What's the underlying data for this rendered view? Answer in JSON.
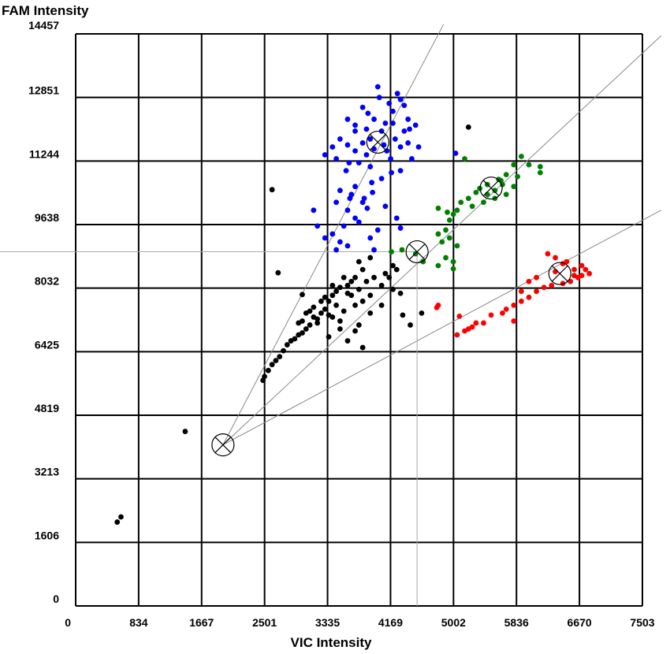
{
  "chart_data": {
    "type": "scatter",
    "xlabel": "VIC Intensity",
    "ylabel": "FAM Intensity",
    "xlim": [
      0,
      7503
    ],
    "ylim": [
      0,
      14457
    ],
    "x_ticks": [
      "0",
      "834",
      "1667",
      "2501",
      "3335",
      "4169",
      "5002",
      "5836",
      "6670",
      "7503"
    ],
    "y_ticks": [
      "0",
      "1606",
      "3213",
      "4819",
      "6425",
      "8032",
      "9638",
      "11244",
      "12851",
      "14457"
    ],
    "grid": true,
    "colors": {
      "blue": "#0000ff",
      "green": "#008000",
      "red": "#ff0000",
      "black": "#000000",
      "grid": "#000000",
      "fit_line": "#888888"
    },
    "centroids": [
      {
        "x": 1950,
        "y": 4070
      },
      {
        "x": 4000,
        "y": 11720
      },
      {
        "x": 5500,
        "y": 10560
      },
      {
        "x": 6410,
        "y": 8400
      },
      {
        "x": 4520,
        "y": 8950
      }
    ],
    "fit_lines": [
      {
        "x1": 1950,
        "y1": 4070,
        "x2": 4870,
        "y2": 14700
      },
      {
        "x1": 1950,
        "y1": 4070,
        "x2": 7750,
        "y2": 14410
      },
      {
        "x1": 1950,
        "y1": 4070,
        "x2": 7750,
        "y2": 10000
      }
    ],
    "crosshair": {
      "x": 4520,
      "y": 8950
    },
    "series": [
      {
        "color": "blue",
        "points": [
          [
            4000,
            13120
          ],
          [
            4150,
            12700
          ],
          [
            4200,
            12500
          ],
          [
            3870,
            12450
          ],
          [
            4300,
            12800
          ],
          [
            4400,
            12300
          ],
          [
            3600,
            12300
          ],
          [
            3700,
            12000
          ],
          [
            3500,
            11800
          ],
          [
            3400,
            11600
          ],
          [
            3300,
            11400
          ],
          [
            3650,
            10400
          ],
          [
            3800,
            10200
          ],
          [
            3600,
            10000
          ],
          [
            3700,
            9800
          ],
          [
            3550,
            9600
          ],
          [
            3400,
            9400
          ],
          [
            3300,
            9300
          ],
          [
            3500,
            9200
          ],
          [
            3600,
            9100
          ],
          [
            3450,
            9000
          ],
          [
            3950,
            9000
          ],
          [
            3150,
            10000
          ],
          [
            3200,
            9600
          ],
          [
            4100,
            10100
          ],
          [
            4250,
            9800
          ],
          [
            4300,
            9550
          ],
          [
            3920,
            10700
          ],
          [
            4050,
            10800
          ],
          [
            4180,
            10950
          ],
          [
            4300,
            11000
          ],
          [
            4450,
            11300
          ],
          [
            4540,
            11600
          ],
          [
            4400,
            11700
          ],
          [
            4350,
            12000
          ],
          [
            3850,
            11400
          ],
          [
            3750,
            11200
          ],
          [
            3900,
            11100
          ],
          [
            4100,
            12200
          ],
          [
            3950,
            12300
          ],
          [
            3800,
            12600
          ],
          [
            4020,
            12850
          ],
          [
            4260,
            12950
          ],
          [
            4350,
            12650
          ],
          [
            4420,
            12050
          ],
          [
            4500,
            12150
          ],
          [
            3700,
            11500
          ],
          [
            3580,
            11000
          ],
          [
            3500,
            10500
          ],
          [
            3450,
            10200
          ],
          [
            3700,
            10600
          ],
          [
            3820,
            10300
          ],
          [
            4000,
            9500
          ],
          [
            3900,
            9300
          ],
          [
            3750,
            9700
          ],
          [
            4120,
            11500
          ],
          [
            4230,
            11800
          ],
          [
            4050,
            12000
          ],
          [
            3900,
            11800
          ],
          [
            3800,
            11700
          ],
          [
            3950,
            11550
          ],
          [
            4080,
            11650
          ],
          [
            4170,
            11300
          ],
          [
            3850,
            12050
          ],
          [
            3700,
            12150
          ],
          [
            3600,
            11650
          ],
          [
            3450,
            11300
          ],
          [
            3620,
            11200
          ],
          [
            4200,
            12200
          ],
          [
            4300,
            11600
          ],
          [
            3930,
            10450
          ],
          [
            3860,
            10050
          ],
          [
            3630,
            10300
          ],
          [
            5030,
            11440
          ]
        ]
      },
      {
        "color": "green",
        "points": [
          [
            5900,
            11360
          ],
          [
            5800,
            11150
          ],
          [
            6000,
            11150
          ],
          [
            6150,
            10950
          ],
          [
            6150,
            11100
          ],
          [
            5700,
            10900
          ],
          [
            5600,
            10780
          ],
          [
            5450,
            10650
          ],
          [
            5300,
            10450
          ],
          [
            5200,
            10300
          ],
          [
            5100,
            10200
          ],
          [
            5050,
            10000
          ],
          [
            5000,
            9900
          ],
          [
            4950,
            9750
          ],
          [
            4900,
            9500
          ],
          [
            4800,
            9400
          ],
          [
            4850,
            9200
          ],
          [
            4950,
            9300
          ],
          [
            5050,
            9100
          ],
          [
            5000,
            8700
          ],
          [
            4900,
            8800
          ],
          [
            4800,
            8600
          ],
          [
            5700,
            10400
          ],
          [
            5550,
            10500
          ],
          [
            5400,
            10200
          ],
          [
            5800,
            10600
          ],
          [
            5350,
            10550
          ],
          [
            5450,
            10400
          ],
          [
            5150,
            11300
          ],
          [
            5650,
            10650
          ],
          [
            5550,
            10300
          ],
          [
            5250,
            10100
          ],
          [
            4800,
            10050
          ],
          [
            4920,
            9950
          ],
          [
            5850,
            10850
          ],
          [
            4180,
            8950
          ],
          [
            4320,
            9000
          ],
          [
            4500,
            8900
          ],
          [
            4600,
            8700
          ],
          [
            5000,
            8520
          ],
          [
            5630,
            10750
          ]
        ]
      },
      {
        "color": "red",
        "points": [
          [
            6500,
            8700
          ],
          [
            6350,
            8800
          ],
          [
            6250,
            8900
          ],
          [
            6600,
            8500
          ],
          [
            6700,
            8600
          ],
          [
            6800,
            8400
          ],
          [
            6650,
            8300
          ],
          [
            6550,
            8200
          ],
          [
            6450,
            8150
          ],
          [
            6300,
            8100
          ],
          [
            6200,
            8050
          ],
          [
            6100,
            7950
          ],
          [
            6000,
            7800
          ],
          [
            5900,
            7700
          ],
          [
            5800,
            7600
          ],
          [
            5700,
            7500
          ],
          [
            5650,
            7400
          ],
          [
            5800,
            7200
          ],
          [
            5500,
            7350
          ],
          [
            5400,
            7150
          ],
          [
            5300,
            7150
          ],
          [
            5250,
            7050
          ],
          [
            5200,
            7000
          ],
          [
            5150,
            6950
          ],
          [
            5050,
            6850
          ],
          [
            4800,
            7600
          ],
          [
            4780,
            7540
          ],
          [
            5080,
            7320
          ],
          [
            6100,
            8300
          ],
          [
            6000,
            8200
          ],
          [
            5900,
            7950
          ],
          [
            6350,
            8450
          ],
          [
            6450,
            8650
          ],
          [
            6600,
            8350
          ],
          [
            6700,
            8350
          ],
          [
            6750,
            8500
          ]
        ]
      },
      {
        "color": "black",
        "points": [
          [
            3900,
            8800
          ],
          [
            3750,
            8700
          ],
          [
            3800,
            8500
          ],
          [
            4200,
            8600
          ],
          [
            4250,
            8500
          ],
          [
            4100,
            8400
          ],
          [
            3700,
            8300
          ],
          [
            3650,
            8200
          ],
          [
            3600,
            8100
          ],
          [
            3500,
            8050
          ],
          [
            3450,
            7950
          ],
          [
            3600,
            7900
          ],
          [
            3400,
            7850
          ],
          [
            3300,
            7800
          ],
          [
            3350,
            7700
          ],
          [
            3450,
            7600
          ],
          [
            3300,
            7500
          ],
          [
            3250,
            7400
          ],
          [
            3150,
            7300
          ],
          [
            3400,
            7300
          ],
          [
            3500,
            7200
          ],
          [
            3200,
            7150
          ],
          [
            3100,
            7100
          ],
          [
            3050,
            7000
          ],
          [
            3000,
            6900
          ],
          [
            2950,
            6850
          ],
          [
            2900,
            6750
          ],
          [
            2850,
            6700
          ],
          [
            2800,
            6600
          ],
          [
            2750,
            6450
          ],
          [
            2700,
            6300
          ],
          [
            2650,
            6200
          ],
          [
            2600,
            6100
          ],
          [
            2550,
            5950
          ],
          [
            2500,
            5800
          ],
          [
            2480,
            5700
          ],
          [
            3900,
            7850
          ],
          [
            3800,
            7700
          ],
          [
            3700,
            7600
          ],
          [
            3550,
            7450
          ],
          [
            3350,
            7350
          ],
          [
            3200,
            7250
          ],
          [
            3000,
            7200
          ],
          [
            3100,
            7450
          ],
          [
            3650,
            7850
          ],
          [
            3750,
            8000
          ],
          [
            3850,
            8200
          ],
          [
            3950,
            8300
          ],
          [
            4050,
            8100
          ],
          [
            4150,
            8300
          ],
          [
            3550,
            8300
          ],
          [
            3400,
            8100
          ],
          [
            3250,
            7700
          ],
          [
            3150,
            7550
          ],
          [
            3050,
            7400
          ],
          [
            2950,
            7150
          ],
          [
            4050,
            7600
          ],
          [
            3750,
            7100
          ],
          [
            4200,
            8000
          ],
          [
            4300,
            7900
          ],
          [
            4330,
            7350
          ],
          [
            3800,
            6530
          ],
          [
            4430,
            7100
          ],
          [
            4580,
            7400
          ],
          [
            3500,
            7000
          ],
          [
            3900,
            7400
          ],
          [
            2680,
            8420
          ],
          [
            3000,
            7870
          ],
          [
            3350,
            6800
          ],
          [
            3600,
            6700
          ],
          [
            3700,
            6950
          ],
          [
            2600,
            10520
          ],
          [
            5200,
            12100
          ],
          [
            1450,
            4410
          ],
          [
            600,
            2250
          ],
          [
            550,
            2120
          ]
        ]
      }
    ]
  }
}
